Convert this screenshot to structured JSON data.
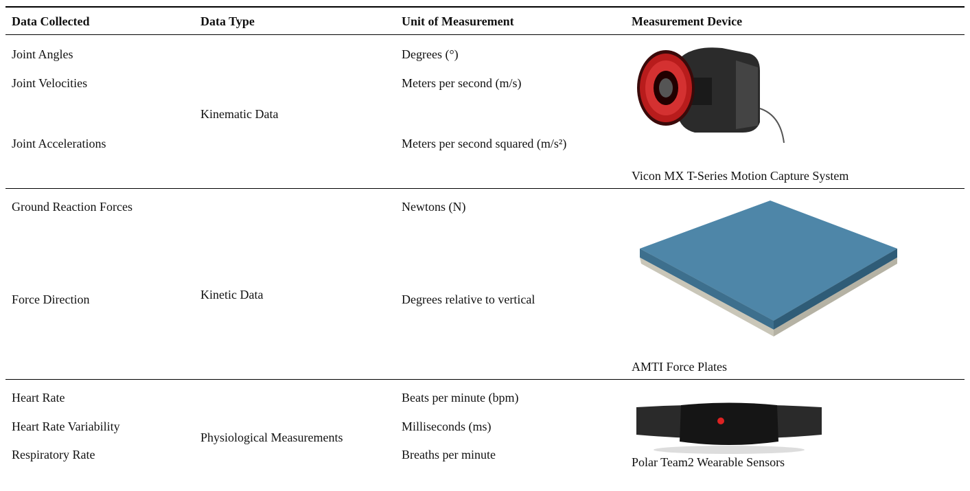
{
  "table": {
    "headers": [
      "Data Collected",
      "Data Type",
      "Unit of Measurement",
      "Measurement Device"
    ],
    "groups": [
      {
        "data_type": "Kinematic Data",
        "rows": [
          {
            "data": "Joint Angles",
            "unit": "Degrees (°)"
          },
          {
            "data": "Joint Velocities",
            "unit": "Meters per second (m/s)"
          },
          {
            "data": "Joint Accelerations",
            "unit": "Meters per second squared (m/s²)"
          }
        ],
        "device": "Vicon MX T-Series Motion Capture System"
      },
      {
        "data_type": "Kinetic Data",
        "rows": [
          {
            "data": "Ground Reaction Forces",
            "unit": "Newtons (N)"
          },
          {
            "data": "Force Direction",
            "unit": "Degrees relative to vertical"
          }
        ],
        "device": "AMTI Force Plates"
      },
      {
        "data_type": "Physiological Measurements",
        "rows": [
          {
            "data": "Heart Rate",
            "unit": "Beats per minute (bpm)"
          },
          {
            "data": "Heart Rate Variability",
            "unit": "Milliseconds (ms)"
          },
          {
            "data": "Respiratory Rate",
            "unit": "Breaths per minute"
          }
        ],
        "device": "Polar Team2 Wearable Sensors"
      }
    ]
  }
}
